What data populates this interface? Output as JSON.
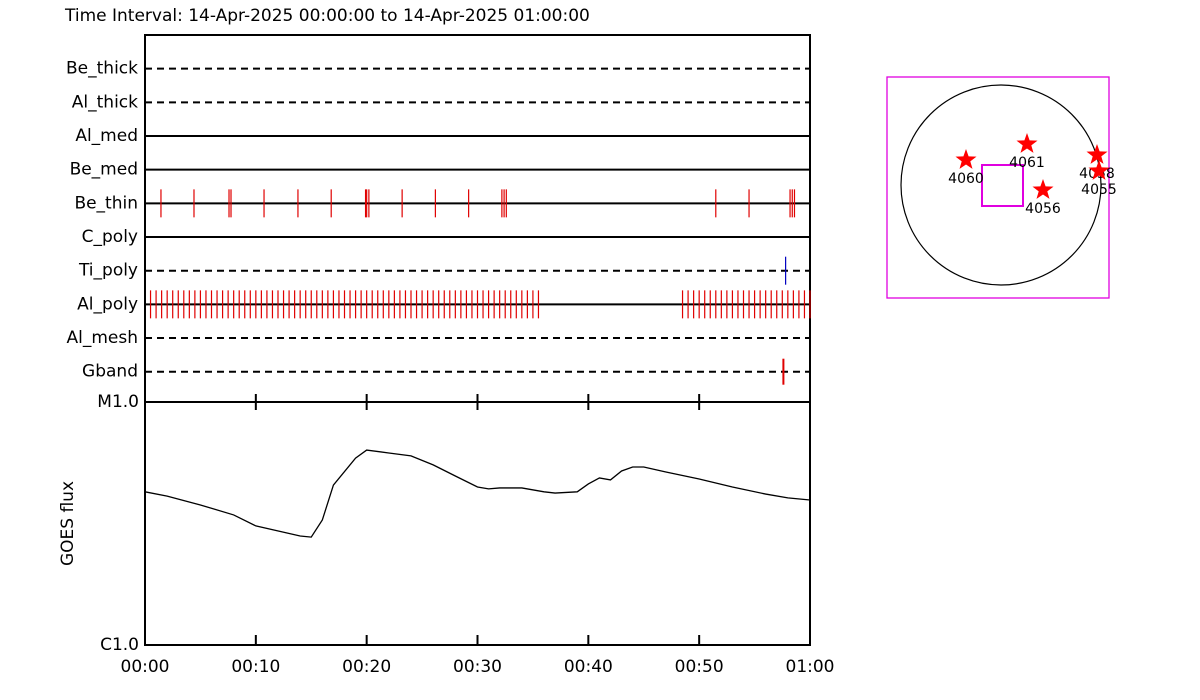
{
  "chart_data": [
    {
      "type": "timeline",
      "title": "Time Interval: 14-Apr-2025 00:00:00 to 14-Apr-2025 01:00:00",
      "xlim": [
        0,
        60
      ],
      "series": [
        {
          "name": "Be_thick",
          "line": "dashed",
          "color": "#e00000",
          "events": []
        },
        {
          "name": "Al_thick",
          "line": "dashed",
          "color": "#e00000",
          "events": []
        },
        {
          "name": "Al_med",
          "line": "solid",
          "color": "#e00000",
          "events": []
        },
        {
          "name": "Be_med",
          "line": "solid",
          "color": "#e00000",
          "events": []
        },
        {
          "name": "Be_thin",
          "line": "solid",
          "color": "#e00000",
          "events": [
            1.44,
            4.42,
            7.58,
            7.76,
            10.74,
            13.8,
            16.8,
            19.9,
            20.0,
            20.2,
            23.2,
            26.2,
            29.2,
            32.2,
            32.4,
            32.6,
            51.5,
            54.5,
            58.2,
            58.4,
            58.6
          ]
        },
        {
          "name": "C_poly",
          "line": "solid",
          "color": "#e00000",
          "events": []
        },
        {
          "name": "Ti_poly",
          "line": "dashed",
          "color": "#0000c0",
          "events": [
            57.8
          ]
        },
        {
          "name": "Al_poly",
          "line": "solid",
          "color": "#e00000",
          "events": [
            0.5,
            1,
            1.5,
            2,
            2.5,
            3,
            3.5,
            4,
            4.5,
            5,
            5.5,
            6,
            6.5,
            7,
            7.5,
            8,
            8.5,
            9,
            9.5,
            10,
            10.5,
            11,
            11.5,
            12,
            12.5,
            13,
            13.5,
            14,
            14.5,
            15,
            15.5,
            16,
            16.5,
            17,
            17.5,
            18,
            18.5,
            19,
            19.5,
            20,
            20.5,
            21,
            21.5,
            22,
            22.5,
            23,
            23.5,
            24,
            24.5,
            25,
            25.5,
            26,
            26.5,
            27,
            27.5,
            28,
            28.5,
            29,
            29.5,
            30,
            30.5,
            31,
            31.5,
            32,
            32.5,
            33,
            33.5,
            34,
            34.5,
            35,
            35.5,
            48.5,
            49,
            49.5,
            50,
            50.5,
            51,
            51.5,
            52,
            52.5,
            53,
            53.5,
            54,
            54.5,
            55,
            55.5,
            56,
            56.5,
            57,
            57.5,
            58,
            58.5,
            59,
            59.5,
            60
          ]
        },
        {
          "name": "Al_mesh",
          "line": "dashed",
          "color": "#e00000",
          "events": []
        },
        {
          "name": "Gband",
          "line": "dashed",
          "color": "#e00000",
          "events": [
            57.6
          ]
        }
      ]
    },
    {
      "type": "line",
      "ylabel": "GOES flux",
      "log_y": true,
      "color": "#000000",
      "xlim": [
        0,
        60
      ],
      "xticks": [
        {
          "value": 0,
          "label": "00:00"
        },
        {
          "value": 10,
          "label": "00:10"
        },
        {
          "value": 20,
          "label": "00:20"
        },
        {
          "value": 30,
          "label": "00:30"
        },
        {
          "value": 40,
          "label": "00:40"
        },
        {
          "value": 50,
          "label": "00:50"
        },
        {
          "value": 60,
          "label": "01:00"
        }
      ],
      "ylim": [
        1e-06,
        1e-05
      ],
      "yticks": [
        {
          "value": 1e-06,
          "label": "C1.0"
        },
        {
          "value": 1e-05,
          "label": "M1.0"
        }
      ],
      "x": [
        0,
        2,
        5,
        8,
        10,
        14,
        15,
        16,
        17,
        19,
        20,
        22,
        24,
        26,
        28,
        30,
        31,
        32,
        34,
        36,
        37,
        39,
        40,
        41,
        42,
        43,
        44,
        45,
        47,
        50,
        53,
        56,
        58,
        60
      ],
      "values": [
        4.27e-06,
        4.1e-06,
        3.77e-06,
        3.43e-06,
        3.09e-06,
        2.81e-06,
        2.78e-06,
        3.27e-06,
        4.55e-06,
        5.88e-06,
        6.34e-06,
        6.17e-06,
        6e-06,
        5.51e-06,
        4.96e-06,
        4.47e-06,
        4.39e-06,
        4.43e-06,
        4.43e-06,
        4.27e-06,
        4.22e-06,
        4.27e-06,
        4.6e-06,
        4.87e-06,
        4.78e-06,
        5.2e-06,
        5.4e-06,
        5.4e-06,
        5.15e-06,
        4.82e-06,
        4.47e-06,
        4.18e-06,
        4.03e-06,
        3.95e-06
      ]
    },
    {
      "type": "map",
      "xlim": [
        -1.14,
        1.08
      ],
      "ylim": [
        -1.13,
        1.08
      ],
      "frame_color": "#e000e0",
      "color": "#ff0000",
      "fov": {
        "x": 0.015,
        "y": -0.005,
        "size": 0.41
      },
      "points": [
        {
          "name": "4060",
          "x": -0.35,
          "y": 0.25
        },
        {
          "name": "4061",
          "x": 0.26,
          "y": 0.41
        },
        {
          "name": "4056",
          "x": 0.42,
          "y": -0.05
        },
        {
          "name": "4058",
          "x": 0.96,
          "y": 0.3
        },
        {
          "name": "4055",
          "x": 0.98,
          "y": 0.14
        }
      ]
    }
  ]
}
